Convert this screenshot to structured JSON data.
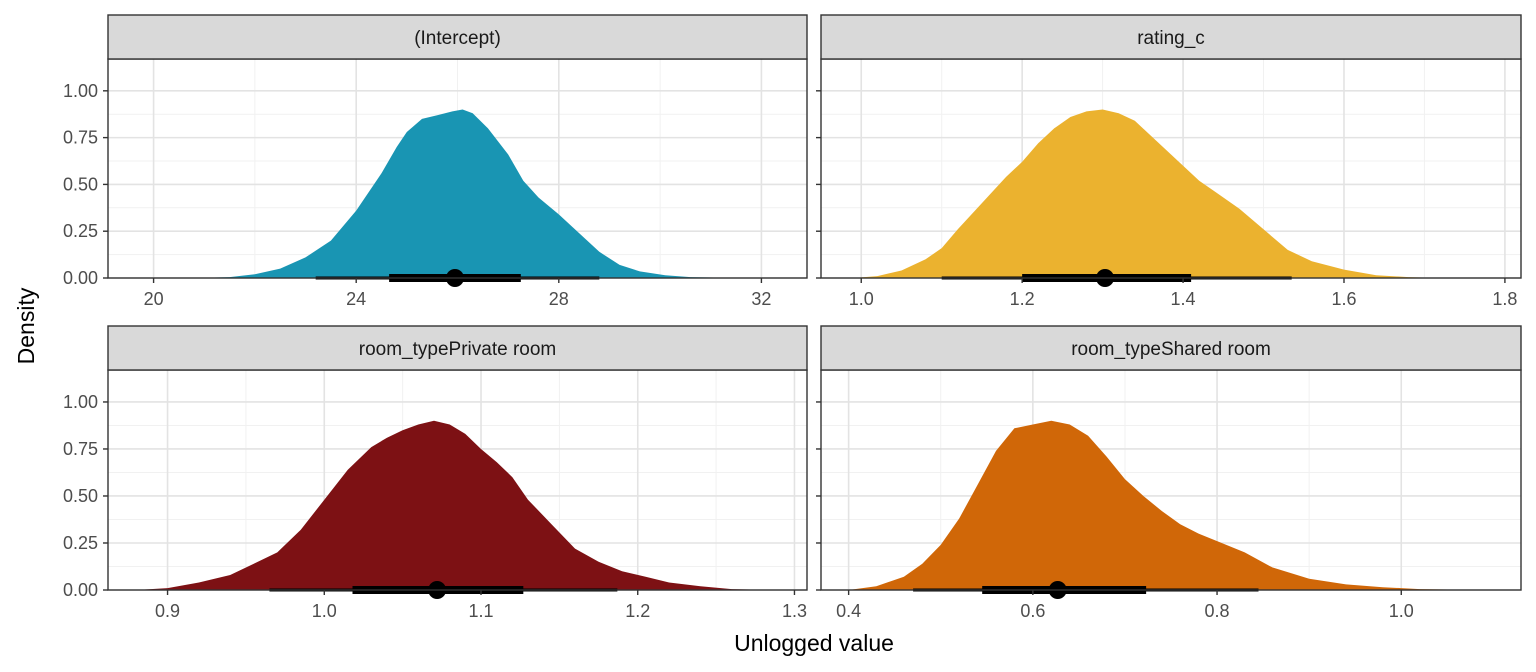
{
  "chart_data": {
    "type": "area",
    "ylabel": "Density",
    "xlabel": "Unlogged value",
    "y_ticks": [
      0,
      0.25,
      0.5,
      0.75,
      1.0
    ],
    "y_tick_labels": [
      "0.00",
      "0.25",
      "0.50",
      "0.75",
      "1.00"
    ],
    "ylim": [
      0,
      1.17
    ],
    "grid": true,
    "interval_line_color": "#000000",
    "panels": [
      {
        "name": "(Intercept)",
        "color": "#1995B3",
        "xlim": [
          19.1,
          32.9
        ],
        "x_ticks": [
          20,
          24,
          28,
          32
        ],
        "x_tick_labels": [
          "20",
          "24",
          "28",
          "32"
        ],
        "show_x_axis": true,
        "density": {
          "x": [
            20.8,
            21.5,
            22.0,
            22.5,
            23.0,
            23.5,
            24.0,
            24.5,
            24.8,
            25.0,
            25.3,
            25.6,
            25.9,
            26.1,
            26.3,
            26.6,
            27.0,
            27.3,
            27.6,
            28.0,
            28.4,
            28.8,
            29.2,
            29.6,
            30.1,
            30.6,
            31.2,
            32.0
          ],
          "y": [
            0.0,
            0.005,
            0.02,
            0.05,
            0.11,
            0.2,
            0.36,
            0.56,
            0.7,
            0.78,
            0.85,
            0.87,
            0.89,
            0.9,
            0.88,
            0.8,
            0.66,
            0.52,
            0.43,
            0.34,
            0.24,
            0.14,
            0.07,
            0.035,
            0.015,
            0.005,
            0.002,
            0.0
          ]
        },
        "median": 25.95,
        "interval_66": [
          24.65,
          27.25
        ],
        "interval_95": [
          23.2,
          28.8
        ]
      },
      {
        "name": "rating_c",
        "color": "#EBB22F",
        "xlim": [
          0.95,
          1.82
        ],
        "x_ticks": [
          1.0,
          1.2,
          1.4,
          1.6,
          1.8
        ],
        "x_tick_labels": [
          "1.0",
          "1.2",
          "1.4",
          "1.6",
          "1.8"
        ],
        "show_x_axis": true,
        "density": {
          "x": [
            0.99,
            1.02,
            1.05,
            1.08,
            1.1,
            1.12,
            1.15,
            1.18,
            1.2,
            1.22,
            1.24,
            1.26,
            1.28,
            1.3,
            1.32,
            1.34,
            1.36,
            1.38,
            1.4,
            1.42,
            1.44,
            1.47,
            1.5,
            1.53,
            1.56,
            1.6,
            1.64,
            1.68,
            1.72
          ],
          "y": [
            0.0,
            0.01,
            0.04,
            0.1,
            0.16,
            0.26,
            0.4,
            0.54,
            0.62,
            0.72,
            0.8,
            0.86,
            0.89,
            0.9,
            0.88,
            0.84,
            0.76,
            0.68,
            0.6,
            0.52,
            0.46,
            0.37,
            0.26,
            0.15,
            0.09,
            0.045,
            0.015,
            0.005,
            0.0
          ]
        },
        "median": 1.303,
        "interval_66": [
          1.2,
          1.41
        ],
        "interval_95": [
          1.1,
          1.535
        ]
      },
      {
        "name": "room_typePrivate room",
        "color": "#7D1114",
        "xlim": [
          0.862,
          1.308
        ],
        "x_ticks": [
          0.9,
          1.0,
          1.1,
          1.2,
          1.3
        ],
        "x_tick_labels": [
          "0.9",
          "1.0",
          "1.1",
          "1.2",
          "1.3"
        ],
        "show_x_axis": true,
        "density": {
          "x": [
            0.88,
            0.9,
            0.92,
            0.94,
            0.955,
            0.97,
            0.985,
            1.0,
            1.015,
            1.03,
            1.04,
            1.05,
            1.06,
            1.07,
            1.08,
            1.09,
            1.1,
            1.11,
            1.12,
            1.13,
            1.145,
            1.16,
            1.175,
            1.19,
            1.205,
            1.22,
            1.24,
            1.26,
            1.29
          ],
          "y": [
            0.0,
            0.01,
            0.04,
            0.08,
            0.14,
            0.2,
            0.32,
            0.48,
            0.64,
            0.76,
            0.81,
            0.85,
            0.88,
            0.9,
            0.88,
            0.83,
            0.75,
            0.68,
            0.6,
            0.48,
            0.35,
            0.22,
            0.15,
            0.1,
            0.07,
            0.04,
            0.02,
            0.005,
            0.0
          ]
        },
        "median": 1.072,
        "interval_66": [
          1.018,
          1.127
        ],
        "interval_95": [
          0.965,
          1.187
        ]
      },
      {
        "name": "room_typeShared room",
        "color": "#D06708",
        "xlim": [
          0.37,
          1.13
        ],
        "x_ticks": [
          0.4,
          0.6,
          0.8,
          1.0
        ],
        "x_tick_labels": [
          "0.4",
          "0.6",
          "0.8",
          "1.0"
        ],
        "show_x_axis": true,
        "density": {
          "x": [
            0.4,
            0.43,
            0.46,
            0.48,
            0.5,
            0.52,
            0.54,
            0.56,
            0.58,
            0.6,
            0.62,
            0.64,
            0.66,
            0.68,
            0.7,
            0.72,
            0.74,
            0.76,
            0.78,
            0.8,
            0.83,
            0.86,
            0.9,
            0.94,
            0.98,
            1.02,
            1.06,
            1.1
          ],
          "y": [
            0.0,
            0.02,
            0.07,
            0.14,
            0.24,
            0.38,
            0.56,
            0.74,
            0.86,
            0.88,
            0.9,
            0.88,
            0.82,
            0.71,
            0.59,
            0.5,
            0.42,
            0.35,
            0.3,
            0.26,
            0.2,
            0.12,
            0.06,
            0.03,
            0.015,
            0.005,
            0.002,
            0.0
          ]
        },
        "median": 0.627,
        "interval_66": [
          0.545,
          0.723
        ],
        "interval_95": [
          0.47,
          0.845
        ]
      }
    ]
  }
}
